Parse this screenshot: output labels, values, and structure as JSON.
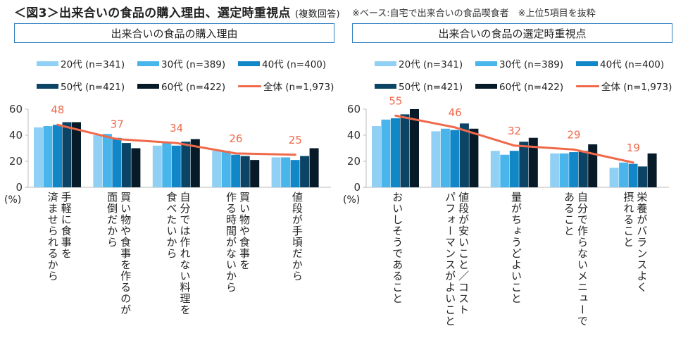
{
  "title": {
    "main": "＜図3＞出来合いの食品の購入理由、選定時重視点",
    "sub": "(複数回答)",
    "note": "※ベース:自宅で出来合いの食品喫食者　※上位5項目を抜粋"
  },
  "legend": {
    "items": [
      {
        "label": "20代 (n=341)",
        "color": "#8fd0f4",
        "type": "bar"
      },
      {
        "label": "30代 (n=389)",
        "color": "#4ab5ea",
        "type": "bar"
      },
      {
        "label": "40代 (n=400)",
        "color": "#1287c8",
        "type": "bar"
      },
      {
        "label": "50代 (n=421)",
        "color": "#0b4464",
        "type": "bar"
      },
      {
        "label": "60代 (n=422)",
        "color": "#061a28",
        "type": "bar"
      },
      {
        "label": "全体 (n=1,973)",
        "color": "#f0694b",
        "type": "line"
      }
    ]
  },
  "chart_data": [
    {
      "type": "bar",
      "title": "出来合いの食品の購入理由",
      "ylabel": "(%)",
      "ylim": [
        0,
        60
      ],
      "yticks": [
        "0",
        "20",
        "40",
        "60"
      ],
      "grid": false,
      "legend_position": "top",
      "categories": [
        "手軽に食事を\n済ませられるから",
        "買い物や食事を作るのが\n面倒だから",
        "自分では作れない料理を\n食べたいから",
        "買い物や食事を\n作る時間がないから",
        "値段が手頃だから"
      ],
      "series": [
        {
          "name": "20代 (n=341)",
          "values": [
            46,
            40,
            32,
            28,
            23
          ]
        },
        {
          "name": "30代 (n=389)",
          "values": [
            47,
            41,
            34,
            28,
            23
          ]
        },
        {
          "name": "40代 (n=400)",
          "values": [
            48,
            38,
            32,
            25,
            21
          ]
        },
        {
          "name": "50代 (n=421)",
          "values": [
            50,
            34,
            35,
            24,
            24
          ]
        },
        {
          "name": "60代 (n=422)",
          "values": [
            50,
            30,
            37,
            21,
            30
          ]
        }
      ],
      "line": {
        "name": "全体 (n=1,973)",
        "values": [
          48,
          37,
          34,
          26,
          25
        ],
        "labels": [
          "48",
          "37",
          "34",
          "26",
          "25"
        ]
      }
    },
    {
      "type": "bar",
      "title": "出来合いの食品の選定時重視点",
      "ylabel": "(%)",
      "ylim": [
        0,
        60
      ],
      "yticks": [
        "0",
        "20",
        "40",
        "60"
      ],
      "grid": false,
      "legend_position": "top",
      "categories": [
        "おいしそうであること",
        "値段が安いこと／コスト\nパフォーマンスがよいこと",
        "量がちょうどよいこと",
        "自分で作らないメニューで\nあること",
        "栄養がバランスよく\n摂れること"
      ],
      "series": [
        {
          "name": "20代 (n=341)",
          "values": [
            47,
            43,
            28,
            26,
            15
          ]
        },
        {
          "name": "30代 (n=389)",
          "values": [
            52,
            45,
            25,
            26,
            19
          ]
        },
        {
          "name": "40代 (n=400)",
          "values": [
            53,
            44,
            28,
            27,
            18
          ]
        },
        {
          "name": "50代 (n=421)",
          "values": [
            56,
            49,
            35,
            28,
            16
          ]
        },
        {
          "name": "60代 (n=422)",
          "values": [
            60,
            45,
            38,
            33,
            26
          ]
        }
      ],
      "line": {
        "name": "全体 (n=1,973)",
        "values": [
          55,
          46,
          32,
          29,
          19
        ],
        "labels": [
          "55",
          "46",
          "32",
          "29",
          "19"
        ]
      }
    }
  ]
}
